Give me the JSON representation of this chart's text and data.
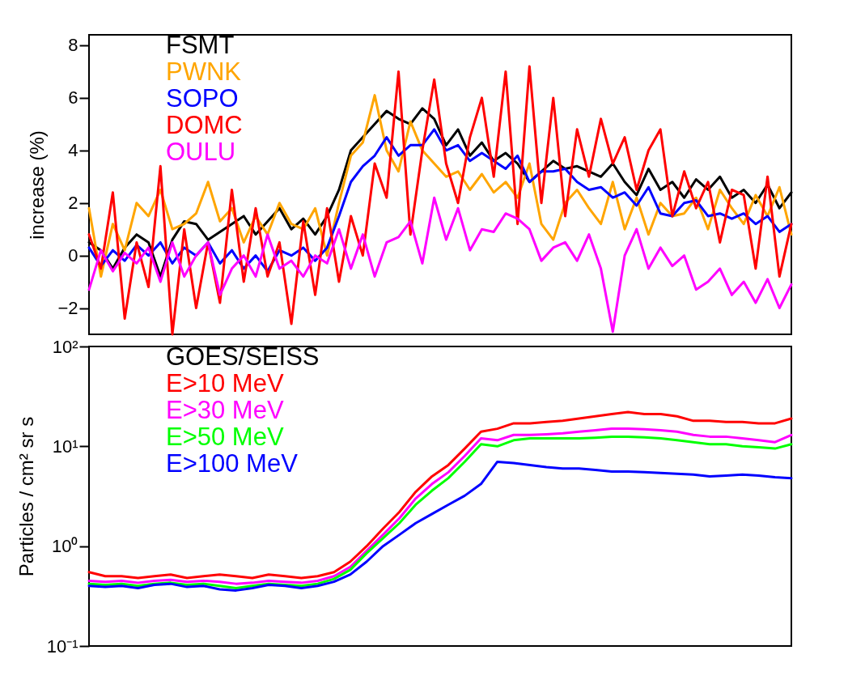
{
  "chart_data": [
    {
      "type": "line",
      "ylabel": "increase (%)",
      "ylim": [
        -3,
        8.4
      ],
      "yticks": [
        -2,
        0,
        2,
        4,
        6,
        8
      ],
      "tick_labels": "y",
      "legend": "top left",
      "categories": [
        null,
        null,
        null,
        null,
        null,
        null,
        null,
        null,
        null,
        null,
        null,
        null,
        null,
        null,
        null,
        null,
        null,
        null,
        null,
        null,
        null,
        null,
        null,
        null,
        null,
        null,
        null,
        null,
        null,
        null,
        null,
        null,
        null,
        null,
        null,
        null,
        null,
        null,
        null,
        null,
        null,
        null,
        null,
        null,
        null,
        null,
        null,
        null,
        null,
        null,
        null,
        null,
        null,
        null,
        null,
        null,
        null,
        null,
        null,
        null
      ],
      "series": [
        {
          "name": "FSMT",
          "color": "#000000",
          "values": [
            0.5,
            0.2,
            -0.5,
            0.3,
            0.8,
            0.5,
            -0.8,
            0.6,
            1.3,
            1.2,
            0.6,
            0.9,
            1.2,
            1.5,
            0.8,
            1.3,
            1.8,
            1.0,
            1.4,
            0.8,
            1.5,
            2.5,
            4.0,
            4.5,
            5.0,
            5.5,
            5.2,
            5.0,
            5.6,
            5.2,
            4.2,
            4.8,
            3.8,
            4.3,
            3.6,
            3.9,
            3.5,
            2.8,
            3.2,
            3.6,
            3.3,
            3.4,
            3.2,
            3.0,
            3.5,
            2.8,
            2.3,
            3.3,
            2.5,
            2.8,
            2.2,
            2.9,
            2.5,
            3.0,
            2.2,
            2.5,
            2.0,
            2.7,
            1.8,
            2.4
          ]
        },
        {
          "name": "PWNK",
          "color": "#ffa500",
          "values": [
            1.8,
            -0.8,
            1.2,
            0.2,
            2.0,
            1.5,
            2.5,
            1.0,
            1.2,
            1.6,
            2.8,
            1.3,
            1.8,
            0.5,
            1.5,
            0.8,
            2.0,
            1.2,
            1.0,
            1.8,
            0.0,
            2.0,
            3.8,
            4.3,
            6.1,
            4.0,
            3.2,
            5.1,
            4.0,
            3.5,
            3.0,
            3.2,
            2.5,
            3.1,
            2.4,
            2.8,
            2.2,
            3.5,
            1.2,
            0.6,
            2.0,
            2.5,
            1.8,
            1.2,
            2.8,
            1.0,
            2.2,
            0.8,
            2.0,
            1.5,
            1.6,
            2.2,
            1.0,
            2.5,
            1.8,
            1.2,
            2.3,
            1.5,
            2.6,
            0.8
          ]
        },
        {
          "name": "SOPO",
          "color": "#0000ff",
          "values": [
            0.3,
            -0.4,
            0.2,
            -0.2,
            0.4,
            0.0,
            0.5,
            -0.3,
            0.3,
            0.0,
            0.5,
            -0.3,
            0.2,
            -0.5,
            0.0,
            -0.6,
            0.2,
            0.0,
            0.3,
            -0.2,
            0.3,
            1.5,
            2.8,
            3.4,
            3.8,
            4.5,
            3.8,
            4.2,
            4.2,
            4.8,
            4.0,
            4.2,
            3.6,
            3.9,
            3.6,
            3.3,
            3.8,
            2.8,
            3.2,
            3.2,
            3.3,
            2.8,
            2.5,
            2.6,
            2.2,
            2.4,
            1.9,
            2.6,
            1.6,
            1.5,
            2.0,
            2.1,
            1.5,
            1.6,
            1.4,
            1.6,
            1.2,
            1.5,
            0.9,
            1.2
          ]
        },
        {
          "name": "DOMC",
          "color": "#ff0000",
          "values": [
            0.8,
            -0.5,
            2.4,
            -2.4,
            0.5,
            -1.2,
            3.4,
            -3.0,
            1.0,
            -2.0,
            0.5,
            -1.8,
            2.5,
            -1.0,
            1.8,
            -0.8,
            0.5,
            -2.6,
            1.3,
            -1.5,
            1.8,
            -1.0,
            1.5,
            0.0,
            3.5,
            2.2,
            7.0,
            0.8,
            4.0,
            6.7,
            3.5,
            2.0,
            4.5,
            6.0,
            3.0,
            7.0,
            1.2,
            7.2,
            2.0,
            6.0,
            1.5,
            4.8,
            3.0,
            5.2,
            3.5,
            4.5,
            2.5,
            4.0,
            4.8,
            1.5,
            3.2,
            1.8,
            2.8,
            0.5,
            2.5,
            2.3,
            -0.5,
            3.0,
            -0.8,
            1.2
          ]
        },
        {
          "name": "OULU",
          "color": "#ff00ff",
          "values": [
            -1.3,
            0.2,
            -0.6,
            0.1,
            -0.3,
            0.3,
            -1.0,
            0.5,
            -0.8,
            0.0,
            0.5,
            -1.5,
            -0.5,
            0.0,
            -0.8,
            0.8,
            -0.5,
            -0.2,
            -0.8,
            0.0,
            -0.3,
            1.0,
            -0.5,
            0.8,
            -0.8,
            0.5,
            0.7,
            1.3,
            -0.3,
            2.2,
            0.6,
            1.8,
            0.2,
            1.0,
            0.9,
            1.6,
            1.4,
            1.0,
            -0.2,
            0.3,
            0.5,
            -0.2,
            0.8,
            -0.5,
            -2.9,
            0.0,
            1.0,
            -0.5,
            0.3,
            -0.4,
            0.0,
            -1.3,
            -1.0,
            -0.5,
            -1.5,
            -1.0,
            -1.8,
            -0.9,
            -2.0,
            -1.1
          ]
        }
      ]
    },
    {
      "type": "line",
      "ylabel": "Particles / cm² sr s",
      "legend_title": "GOES/SEISS",
      "log": true,
      "ylim": [
        0.1,
        100
      ],
      "yticks": [
        {
          "value": 0.1,
          "label": "10⁻¹"
        },
        {
          "value": 1,
          "label": "10⁰"
        },
        {
          "value": 10,
          "label": "10¹"
        },
        {
          "value": 100,
          "label": "10²"
        }
      ],
      "tick_labels": "y",
      "legend": "top left",
      "categories": [
        null,
        null,
        null,
        null,
        null,
        null,
        null,
        null,
        null,
        null,
        null,
        null,
        null,
        null,
        null,
        null,
        null,
        null,
        null,
        null,
        null,
        null,
        null,
        null,
        null,
        null,
        null,
        null,
        null,
        null,
        null,
        null,
        null,
        null,
        null,
        null,
        null,
        null,
        null,
        null,
        null,
        null,
        null,
        null
      ],
      "series": [
        {
          "name": "E>10 MeV",
          "color": "#ff0000",
          "values": [
            0.55,
            0.5,
            0.5,
            0.48,
            0.5,
            0.52,
            0.48,
            0.5,
            0.52,
            0.5,
            0.48,
            0.52,
            0.5,
            0.48,
            0.5,
            0.55,
            0.7,
            1.0,
            1.5,
            2.2,
            3.5,
            5,
            6.5,
            9.5,
            14,
            15,
            17,
            17,
            17.5,
            18,
            19,
            20,
            21,
            22,
            21,
            21,
            20,
            18,
            18,
            17.5,
            17.5,
            17,
            17,
            19
          ]
        },
        {
          "name": "E>30 MeV",
          "color": "#ff00ff",
          "values": [
            0.45,
            0.44,
            0.45,
            0.43,
            0.45,
            0.46,
            0.44,
            0.45,
            0.44,
            0.42,
            0.43,
            0.45,
            0.44,
            0.43,
            0.45,
            0.5,
            0.62,
            0.9,
            1.3,
            1.9,
            3.0,
            4.2,
            5.5,
            8.0,
            12,
            11.5,
            13,
            13,
            13.2,
            13.5,
            14,
            14.5,
            15,
            15,
            14.8,
            14.5,
            14,
            13,
            12.5,
            12.5,
            12,
            11.5,
            11,
            13
          ]
        },
        {
          "name": "E>50 MeV",
          "color": "#00ff00",
          "values": [
            0.42,
            0.41,
            0.42,
            0.4,
            0.42,
            0.43,
            0.41,
            0.42,
            0.4,
            0.38,
            0.4,
            0.42,
            0.41,
            0.4,
            0.42,
            0.47,
            0.58,
            0.85,
            1.2,
            1.7,
            2.6,
            3.6,
            4.8,
            7.0,
            10.5,
            10,
            11.5,
            12,
            12,
            12,
            12,
            12.2,
            12.5,
            12.5,
            12.3,
            12,
            11.5,
            11,
            10.5,
            10.5,
            10,
            9.8,
            9.5,
            10.5
          ]
        },
        {
          "name": "E>100 MeV",
          "color": "#0000ff",
          "values": [
            0.4,
            0.39,
            0.4,
            0.38,
            0.41,
            0.42,
            0.39,
            0.4,
            0.37,
            0.36,
            0.38,
            0.41,
            0.4,
            0.38,
            0.4,
            0.44,
            0.52,
            0.7,
            1.0,
            1.3,
            1.7,
            2.1,
            2.6,
            3.2,
            4.2,
            7.0,
            6.8,
            6.5,
            6.2,
            6.0,
            6.0,
            5.8,
            5.6,
            5.6,
            5.5,
            5.4,
            5.3,
            5.2,
            5.0,
            5.1,
            5.2,
            5.1,
            4.9,
            4.8
          ]
        }
      ]
    }
  ]
}
